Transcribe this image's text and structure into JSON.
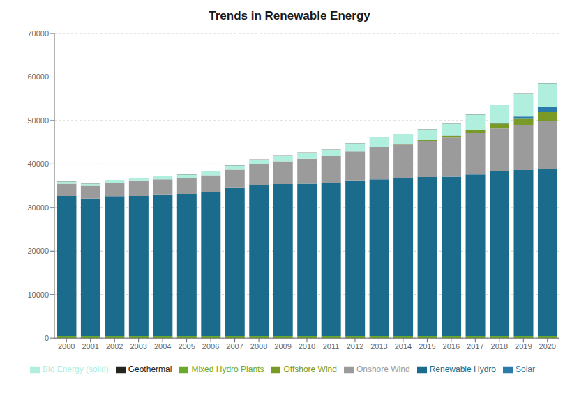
{
  "chart_data": {
    "type": "bar",
    "title": "Trends in Renewable Energy",
    "categories": [
      "2000",
      "2001",
      "2002",
      "2003",
      "2004",
      "2005",
      "2006",
      "2007",
      "2008",
      "2009",
      "2010",
      "2011",
      "2012",
      "2013",
      "2014",
      "2015",
      "2016",
      "2017",
      "2018",
      "2019",
      "2020"
    ],
    "series": [
      {
        "name": "Mixed Hydro Plants",
        "color": "#6aaa2a",
        "values": [
          500,
          500,
          500,
          500,
          500,
          500,
          500,
          500,
          500,
          500,
          500,
          500,
          500,
          500,
          500,
          500,
          500,
          500,
          500,
          500,
          500
        ]
      },
      {
        "name": "Renewable Hydro",
        "color": "#1b6b8c",
        "values": [
          32200,
          31600,
          32000,
          32200,
          32400,
          32600,
          33000,
          34000,
          34600,
          34900,
          35000,
          35100,
          35600,
          36000,
          36300,
          36500,
          36600,
          37100,
          37900,
          38100,
          38400
        ]
      },
      {
        "name": "Onshore Wind",
        "color": "#9b9b9b",
        "values": [
          2800,
          2900,
          3200,
          3400,
          3600,
          3700,
          3900,
          4200,
          4800,
          5200,
          5700,
          6200,
          6800,
          7400,
          7700,
          8300,
          9000,
          9500,
          9800,
          10300,
          11000
        ]
      },
      {
        "name": "Offshore Wind",
        "color": "#7a9a28",
        "values": [
          0,
          0,
          0,
          0,
          0,
          0,
          0,
          0,
          0,
          0,
          0,
          0,
          0,
          0,
          100,
          200,
          400,
          700,
          1100,
          1500,
          2000
        ]
      },
      {
        "name": "Solar",
        "color": "#2a7aaa",
        "values": [
          0,
          0,
          0,
          0,
          0,
          0,
          0,
          0,
          0,
          0,
          0,
          0,
          0,
          0,
          0,
          0,
          50,
          100,
          200,
          500,
          1200
        ]
      },
      {
        "name": "Bio Energy (solid)",
        "color": "#b0eedd",
        "values": [
          500,
          500,
          600,
          700,
          700,
          800,
          900,
          1000,
          1100,
          1200,
          1400,
          1500,
          1900,
          2300,
          2200,
          2500,
          2700,
          3500,
          4000,
          5200,
          5500
        ]
      },
      {
        "name": "Geothermal",
        "color": "#252520",
        "values": [
          40,
          40,
          40,
          40,
          40,
          40,
          40,
          40,
          40,
          40,
          40,
          40,
          40,
          40,
          40,
          40,
          40,
          40,
          40,
          40,
          40
        ]
      }
    ],
    "ylim": [
      0,
      70000
    ],
    "yticks": [
      0,
      10000,
      20000,
      30000,
      40000,
      50000,
      60000,
      70000
    ],
    "stacked": true,
    "grid": true,
    "legend": "bottom"
  }
}
